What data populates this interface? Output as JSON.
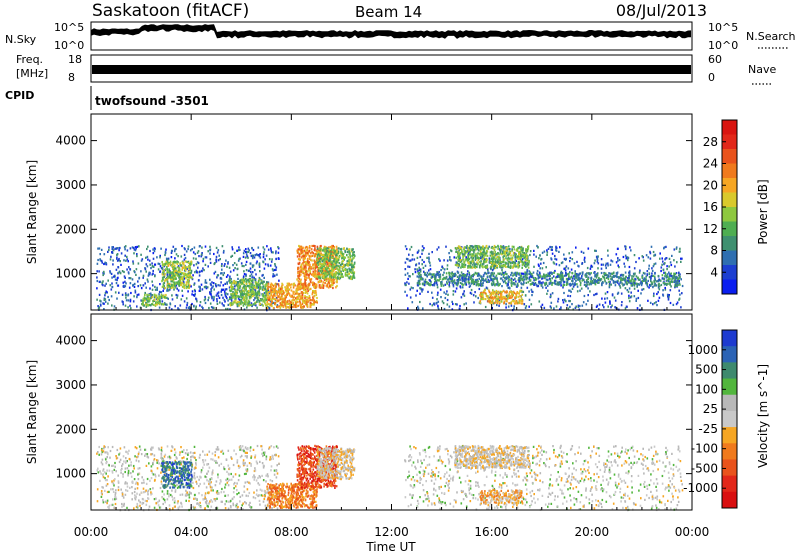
{
  "header": {
    "station": "Saskatoon (fitACF)",
    "beam": "Beam 14",
    "date": "08/Jul/2013"
  },
  "strips": {
    "nsky_label": "N.Sky",
    "nsearch_label": "N.Search",
    "nsky_ticks": [
      "10^5",
      "10^0"
    ],
    "freq_label_1": "Freq.",
    "freq_label_2": "[MHz]",
    "freq_ticks": [
      "18",
      "8"
    ],
    "nave_label": "Nave",
    "nave_ticks": [
      "60",
      "0"
    ],
    "nsearch_ticks": [
      "10^5",
      "10^0"
    ],
    "cpid_label": "CPID",
    "cpid_value": "twofsound -3501"
  },
  "chart_data": [
    {
      "type": "heatmap",
      "panel": "power",
      "xlabel": "",
      "ylabel": "Slant Range [km]",
      "ylim": [
        180,
        4600
      ],
      "y_ticks": [
        1000,
        2000,
        3000,
        4000
      ],
      "xlim": [
        0,
        24
      ],
      "colorbar_label": "Power [dB]",
      "colorbar_ticks": [
        4,
        8,
        12,
        16,
        20,
        24,
        28
      ],
      "colorbar_colors": [
        "#0a1eef",
        "#1d3fd1",
        "#2f6fb1",
        "#3f9070",
        "#4fae52",
        "#8ec83f",
        "#d9c92c",
        "#f6a623",
        "#f07a1d",
        "#e9531c",
        "#e22719",
        "#d91410"
      ],
      "echo_regions": [
        {
          "t0": 0.2,
          "t1": 7.5,
          "r0": 200,
          "r1": 1650,
          "level": 0.15
        },
        {
          "t0": 2.8,
          "t1": 4.0,
          "r0": 700,
          "r1": 1300,
          "level": 0.45
        },
        {
          "t0": 2.0,
          "t1": 3.0,
          "r0": 300,
          "r1": 550,
          "level": 0.4
        },
        {
          "t0": 5.5,
          "t1": 7.0,
          "r0": 300,
          "r1": 900,
          "level": 0.4
        },
        {
          "t0": 7.0,
          "t1": 9.0,
          "r0": 250,
          "r1": 800,
          "level": 0.65
        },
        {
          "t0": 8.2,
          "t1": 9.8,
          "r0": 700,
          "r1": 1650,
          "level": 0.7
        },
        {
          "t0": 9.0,
          "t1": 10.5,
          "r0": 900,
          "r1": 1600,
          "level": 0.4
        },
        {
          "t0": 12.5,
          "t1": 23.6,
          "r0": 200,
          "r1": 1650,
          "level": 0.15
        },
        {
          "t0": 14.5,
          "t1": 17.5,
          "r0": 1150,
          "r1": 1650,
          "level": 0.4
        },
        {
          "t0": 15.5,
          "t1": 17.2,
          "r0": 350,
          "r1": 650,
          "level": 0.6
        },
        {
          "t0": 13.0,
          "t1": 23.5,
          "r0": 750,
          "r1": 1050,
          "level": 0.25
        }
      ]
    },
    {
      "type": "heatmap",
      "panel": "velocity",
      "xlabel": "Time UT",
      "ylabel": "Slant Range [km]",
      "ylim": [
        180,
        4600
      ],
      "y_ticks": [
        1000,
        2000,
        3000,
        4000
      ],
      "xlim": [
        0,
        24
      ],
      "x_tick_labels": [
        "00:00",
        "04:00",
        "08:00",
        "12:00",
        "16:00",
        "20:00",
        "00:00"
      ],
      "colorbar_label": "Velocity [m s^-1]",
      "colorbar_ticks": [
        1000,
        500,
        100,
        25,
        -25,
        -100,
        -500,
        -1000
      ],
      "colorbar_colors": [
        "#1e3bd0",
        "#2b63b5",
        "#3e8a6e",
        "#52b63d",
        "#b8b8b8",
        "#c9c9c9",
        "#f6a623",
        "#f07a1d",
        "#e9531c",
        "#e22719",
        "#d90f10"
      ],
      "echo_regions": [
        {
          "t0": 0.2,
          "t1": 7.5,
          "r0": 200,
          "r1": 1650,
          "level": 0.45
        },
        {
          "t0": 2.8,
          "t1": 4.0,
          "r0": 700,
          "r1": 1300,
          "level": 0.15
        },
        {
          "t0": 7.0,
          "t1": 9.0,
          "r0": 250,
          "r1": 800,
          "level": 0.7
        },
        {
          "t0": 8.2,
          "t1": 9.8,
          "r0": 700,
          "r1": 1650,
          "level": 0.85
        },
        {
          "t0": 9.0,
          "t1": 10.5,
          "r0": 900,
          "r1": 1600,
          "level": 0.5
        },
        {
          "t0": 12.5,
          "t1": 23.6,
          "r0": 200,
          "r1": 1650,
          "level": 0.45
        },
        {
          "t0": 14.5,
          "t1": 17.5,
          "r0": 1150,
          "r1": 1650,
          "level": 0.5
        },
        {
          "t0": 15.5,
          "t1": 17.2,
          "r0": 350,
          "r1": 650,
          "level": 0.6
        }
      ]
    }
  ]
}
